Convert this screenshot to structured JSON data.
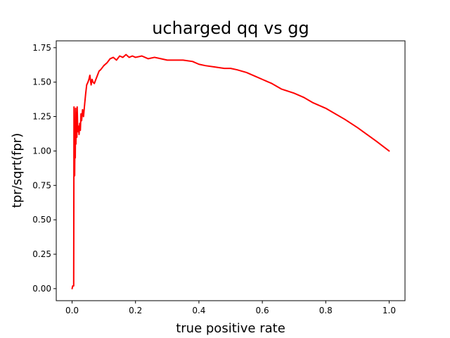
{
  "chart_data": {
    "type": "line",
    "title": "ucharged qq vs gg",
    "xlabel": "true positive rate",
    "ylabel": "tpr/sqrt(fpr)",
    "xlim": [
      -0.05,
      1.05
    ],
    "ylim": [
      -0.0875,
      1.8
    ],
    "x_ticks": [
      0.0,
      0.2,
      0.4,
      0.6,
      0.8,
      1.0
    ],
    "x_tick_labels": [
      "0.0",
      "0.2",
      "0.4",
      "0.6",
      "0.8",
      "1.0"
    ],
    "y_ticks": [
      0.0,
      0.25,
      0.5,
      0.75,
      1.0,
      1.25,
      1.5,
      1.75
    ],
    "y_tick_labels": [
      "0.00",
      "0.25",
      "0.50",
      "0.75",
      "1.00",
      "1.25",
      "1.50",
      "1.75"
    ],
    "grid": false,
    "legend": "none",
    "series": [
      {
        "color": "#ff0000",
        "x": [
          0.0,
          0.002,
          0.004,
          0.005,
          0.006,
          0.007,
          0.008,
          0.009,
          0.01,
          0.011,
          0.012,
          0.013,
          0.014,
          0.015,
          0.016,
          0.018,
          0.02,
          0.022,
          0.024,
          0.026,
          0.028,
          0.03,
          0.033,
          0.036,
          0.04,
          0.043,
          0.046,
          0.05,
          0.053,
          0.056,
          0.06,
          0.063,
          0.066,
          0.07,
          0.075,
          0.08,
          0.085,
          0.09,
          0.1,
          0.11,
          0.12,
          0.13,
          0.14,
          0.15,
          0.16,
          0.17,
          0.18,
          0.19,
          0.2,
          0.22,
          0.24,
          0.26,
          0.28,
          0.3,
          0.32,
          0.35,
          0.38,
          0.4,
          0.42,
          0.45,
          0.48,
          0.5,
          0.52,
          0.55,
          0.58,
          0.6,
          0.63,
          0.66,
          0.7,
          0.73,
          0.76,
          0.8,
          0.83,
          0.86,
          0.9,
          0.93,
          0.96,
          1.0
        ],
        "y": [
          0.0,
          0.02,
          0.02,
          0.02,
          1.32,
          0.9,
          0.82,
          1.1,
          0.95,
          1.31,
          1.05,
          1.2,
          1.28,
          1.1,
          1.32,
          1.14,
          1.18,
          1.12,
          1.2,
          1.15,
          1.27,
          1.22,
          1.3,
          1.25,
          1.35,
          1.42,
          1.48,
          1.5,
          1.52,
          1.55,
          1.48,
          1.52,
          1.5,
          1.49,
          1.52,
          1.55,
          1.58,
          1.59,
          1.62,
          1.64,
          1.67,
          1.68,
          1.66,
          1.69,
          1.68,
          1.7,
          1.68,
          1.69,
          1.68,
          1.69,
          1.67,
          1.68,
          1.67,
          1.66,
          1.66,
          1.66,
          1.65,
          1.63,
          1.62,
          1.61,
          1.6,
          1.6,
          1.59,
          1.57,
          1.54,
          1.52,
          1.49,
          1.45,
          1.42,
          1.39,
          1.35,
          1.31,
          1.27,
          1.23,
          1.17,
          1.12,
          1.07,
          1.0
        ]
      }
    ]
  }
}
